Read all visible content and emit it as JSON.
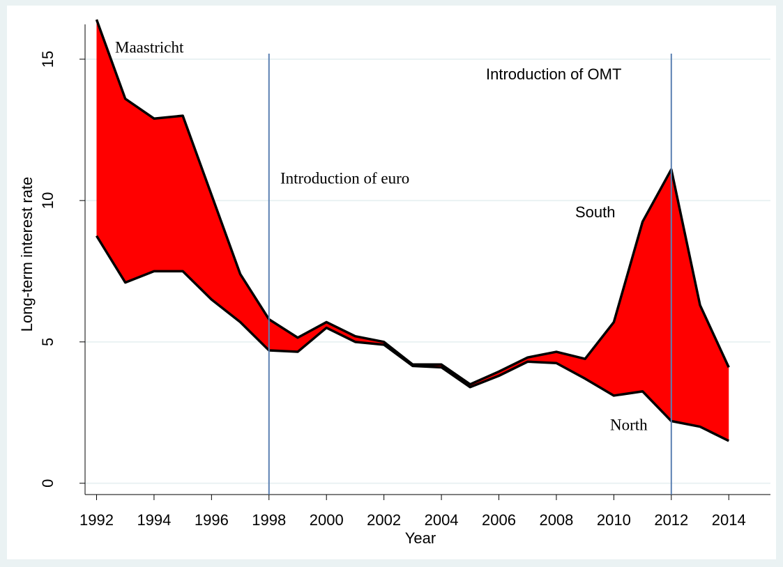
{
  "chart_data": {
    "type": "band",
    "x_label": "Year",
    "y_label": "Long-term interest rate",
    "x": [
      1992,
      1993,
      1994,
      1995,
      1996,
      1997,
      1998,
      1999,
      2000,
      2001,
      2002,
      2003,
      2004,
      2005,
      2006,
      2007,
      2008,
      2009,
      2010,
      2011,
      2012,
      2013,
      2014
    ],
    "series": [
      {
        "name": "South",
        "color": "#000000",
        "values": [
          16.4,
          13.6,
          12.9,
          13.0,
          10.2,
          7.4,
          5.8,
          5.15,
          5.7,
          5.2,
          5.0,
          4.2,
          4.2,
          3.5,
          3.95,
          4.45,
          4.65,
          4.4,
          5.7,
          9.25,
          11.1,
          6.3,
          4.1
        ]
      },
      {
        "name": "North",
        "color": "#000000",
        "values": [
          8.75,
          7.1,
          7.5,
          7.5,
          6.5,
          5.7,
          4.7,
          4.65,
          5.5,
          5.0,
          4.9,
          4.15,
          4.1,
          3.4,
          3.8,
          4.3,
          4.25,
          3.7,
          3.1,
          3.25,
          2.2,
          2.0,
          1.5
        ]
      }
    ],
    "fill_color": "#ff0000",
    "vlines": [
      1998,
      2012
    ],
    "vline_color": "#5b80b2",
    "annotations": [
      "Maastricht",
      "Introduction of euro",
      "Introduction of OMT"
    ],
    "xlim": [
      1991.6,
      2015.45
    ],
    "xticks": [
      1992,
      1994,
      1996,
      1998,
      2000,
      2002,
      2004,
      2006,
      2008,
      2010,
      2012,
      2014
    ],
    "ylim": [
      -0.4,
      16.65
    ],
    "yticks": [
      0,
      5,
      10,
      15
    ],
    "grid": true
  }
}
